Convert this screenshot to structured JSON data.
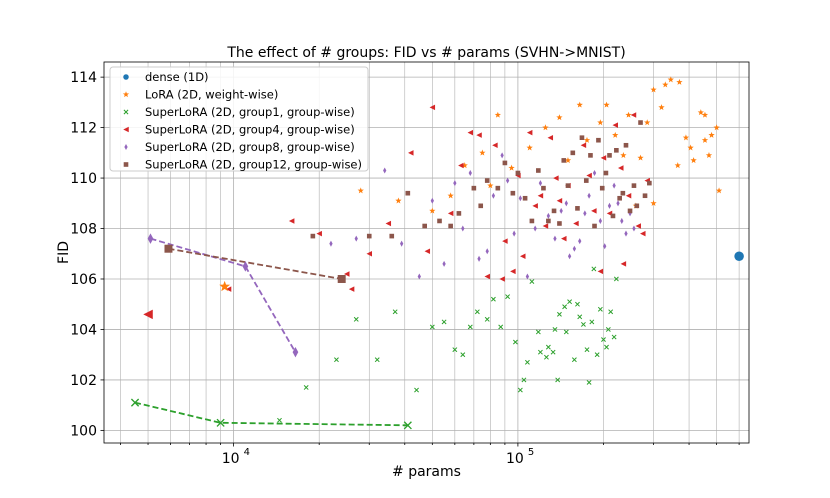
{
  "chart_data": {
    "type": "scatter",
    "title": "The effect of # groups: FID vs # params (SVHN->MNIST)",
    "xlabel": "# params",
    "ylabel": "FID",
    "x_scale": "log",
    "xlim": [
      3500,
      650000
    ],
    "ylim": [
      99.5,
      114.6
    ],
    "x_major_ticks": [
      {
        "value": 10000,
        "base": "10",
        "exp": "4"
      },
      {
        "value": 100000,
        "base": "10",
        "exp": "5"
      }
    ],
    "y_ticks": [
      100,
      102,
      104,
      106,
      108,
      110,
      112,
      114
    ],
    "grid": true,
    "legend_position": "upper-left",
    "series": [
      {
        "name": "dense (1D)",
        "color": "#1f77b4",
        "marker": "circle",
        "points": [
          [
            600000,
            106.9
          ]
        ],
        "highlight": [
          [
            600000,
            106.9
          ]
        ]
      },
      {
        "name": "LoRA (2D, weight-wise)",
        "color": "#ff7f0e",
        "marker": "star",
        "highlight": [
          [
            9300,
            105.7
          ]
        ],
        "points": [
          [
            28000,
            109.5
          ],
          [
            38000,
            109.1
          ],
          [
            50000,
            108.7
          ],
          [
            58000,
            109.3
          ],
          [
            65000,
            110.5
          ],
          [
            80000,
            109.7
          ],
          [
            75000,
            111.0
          ],
          [
            85000,
            112.5
          ],
          [
            95000,
            110.4
          ],
          [
            110000,
            111.2
          ],
          [
            125000,
            112.0
          ],
          [
            140000,
            112.4
          ],
          [
            150000,
            110.7
          ],
          [
            165000,
            112.9
          ],
          [
            175000,
            111.5
          ],
          [
            195000,
            112.2
          ],
          [
            205000,
            112.9
          ],
          [
            220000,
            111.7
          ],
          [
            235000,
            110.9
          ],
          [
            245000,
            112.5
          ],
          [
            260000,
            108.9
          ],
          [
            270000,
            110.8
          ],
          [
            285000,
            112.2
          ],
          [
            300000,
            113.5
          ],
          [
            320000,
            112.8
          ],
          [
            330000,
            113.7
          ],
          [
            345000,
            113.9
          ],
          [
            370000,
            113.8
          ],
          [
            365000,
            110.5
          ],
          [
            390000,
            111.6
          ],
          [
            405000,
            111.2
          ],
          [
            415000,
            110.7
          ],
          [
            440000,
            112.6
          ],
          [
            455000,
            112.5
          ],
          [
            470000,
            110.9
          ],
          [
            480000,
            111.7
          ],
          [
            500000,
            112.0
          ],
          [
            510000,
            109.5
          ],
          [
            455000,
            111.5
          ],
          [
            300000,
            109.0
          ]
        ]
      },
      {
        "name": "SuperLoRA (2D, group1, group-wise)",
        "color": "#2ca02c",
        "marker": "x",
        "line": [
          [
            4500,
            101.1
          ],
          [
            9000,
            100.3
          ],
          [
            41000,
            100.2
          ]
        ],
        "highlight": [
          [
            4500,
            101.1
          ],
          [
            9000,
            100.3
          ],
          [
            41000,
            100.2
          ]
        ],
        "points": [
          [
            14500,
            100.4
          ],
          [
            18000,
            101.7
          ],
          [
            23000,
            102.8
          ],
          [
            27000,
            104.4
          ],
          [
            32000,
            102.8
          ],
          [
            37000,
            104.7
          ],
          [
            44000,
            101.6
          ],
          [
            50000,
            104.1
          ],
          [
            55000,
            104.3
          ],
          [
            60000,
            103.2
          ],
          [
            64000,
            103.0
          ],
          [
            68000,
            104.1
          ],
          [
            72000,
            104.7
          ],
          [
            78000,
            104.4
          ],
          [
            82000,
            105.2
          ],
          [
            87000,
            104.1
          ],
          [
            92000,
            105.3
          ],
          [
            98000,
            103.5
          ],
          [
            102000,
            101.6
          ],
          [
            105000,
            102.0
          ],
          [
            108000,
            102.7
          ],
          [
            112000,
            105.9
          ],
          [
            118000,
            103.9
          ],
          [
            120000,
            103.1
          ],
          [
            126000,
            102.9
          ],
          [
            128000,
            103.3
          ],
          [
            133000,
            103.1
          ],
          [
            135000,
            104.0
          ],
          [
            138000,
            102.0
          ],
          [
            140000,
            104.6
          ],
          [
            146000,
            104.9
          ],
          [
            148000,
            103.9
          ],
          [
            152000,
            105.1
          ],
          [
            158000,
            102.8
          ],
          [
            162000,
            105.0
          ],
          [
            165000,
            104.5
          ],
          [
            170000,
            104.2
          ],
          [
            175000,
            103.2
          ],
          [
            178000,
            101.9
          ],
          [
            182000,
            104.3
          ],
          [
            185000,
            106.4
          ],
          [
            190000,
            103.0
          ],
          [
            195000,
            104.8
          ],
          [
            200000,
            103.6
          ],
          [
            205000,
            103.3
          ],
          [
            208000,
            104.0
          ],
          [
            212000,
            104.7
          ],
          [
            218000,
            103.7
          ],
          [
            222000,
            106.0
          ]
        ]
      },
      {
        "name": "SuperLoRA (2D, group4, group-wise)",
        "color": "#d62728",
        "marker": "triangle-left",
        "highlight": [
          [
            5000,
            104.6
          ]
        ],
        "points": [
          [
            9600,
            105.6
          ],
          [
            16000,
            108.3
          ],
          [
            20000,
            107.8
          ],
          [
            25000,
            106.2
          ],
          [
            26000,
            105.6
          ],
          [
            30000,
            107.0
          ],
          [
            35000,
            108.2
          ],
          [
            42000,
            111.0
          ],
          [
            48000,
            107.1
          ],
          [
            50000,
            112.8
          ],
          [
            58000,
            108.6
          ],
          [
            63000,
            110.5
          ],
          [
            68000,
            111.8
          ],
          [
            73000,
            111.7
          ],
          [
            78000,
            106.1
          ],
          [
            83000,
            111.3
          ],
          [
            88000,
            106.0
          ],
          [
            90000,
            107.5
          ],
          [
            96000,
            106.3
          ],
          [
            100000,
            110.1
          ],
          [
            104000,
            106.9
          ],
          [
            110000,
            111.8
          ],
          [
            115000,
            108.9
          ],
          [
            120000,
            109.3
          ],
          [
            125000,
            108.1
          ],
          [
            130000,
            111.6
          ],
          [
            136000,
            110.0
          ],
          [
            140000,
            109.1
          ],
          [
            145000,
            107.6
          ],
          [
            150000,
            109.7
          ],
          [
            160000,
            108.2
          ],
          [
            170000,
            111.3
          ],
          [
            178000,
            110.1
          ],
          [
            185000,
            108.7
          ],
          [
            195000,
            106.3
          ],
          [
            200000,
            110.8
          ],
          [
            210000,
            108.6
          ],
          [
            220000,
            112.1
          ],
          [
            230000,
            110.4
          ],
          [
            235000,
            106.6
          ],
          [
            245000,
            109.3
          ],
          [
            255000,
            112.5
          ],
          [
            265000,
            108.1
          ],
          [
            275000,
            107.8
          ],
          [
            285000,
            109.9
          ]
        ]
      },
      {
        "name": "SuperLoRA (2D, group8, group-wise)",
        "color": "#9467bd",
        "marker": "thin-diamond",
        "line": [
          [
            5100,
            107.6
          ],
          [
            11000,
            106.5
          ],
          [
            16500,
            103.1
          ]
        ],
        "highlight": [
          [
            5100,
            107.6
          ],
          [
            11000,
            106.5
          ],
          [
            16500,
            103.1
          ]
        ],
        "points": [
          [
            22000,
            107.4
          ],
          [
            27000,
            107.6
          ],
          [
            34000,
            110.3
          ],
          [
            39000,
            107.4
          ],
          [
            45000,
            106.1
          ],
          [
            50000,
            109.1
          ],
          [
            55000,
            106.6
          ],
          [
            60000,
            109.8
          ],
          [
            64000,
            108.0
          ],
          [
            68000,
            110.2
          ],
          [
            73000,
            106.8
          ],
          [
            78000,
            107.1
          ],
          [
            82000,
            109.3
          ],
          [
            88000,
            110.9
          ],
          [
            92000,
            109.9
          ],
          [
            97000,
            107.8
          ],
          [
            102000,
            109.2
          ],
          [
            108000,
            106.1
          ],
          [
            115000,
            108.0
          ],
          [
            120000,
            109.8
          ],
          [
            128000,
            108.5
          ],
          [
            135000,
            107.6
          ],
          [
            142000,
            108.7
          ],
          [
            148000,
            109.0
          ],
          [
            152000,
            106.9
          ],
          [
            158000,
            107.2
          ],
          [
            165000,
            107.5
          ],
          [
            172000,
            108.6
          ],
          [
            178000,
            109.3
          ],
          [
            186000,
            110.2
          ],
          [
            195000,
            108.3
          ],
          [
            202000,
            107.3
          ],
          [
            210000,
            108.9
          ],
          [
            218000,
            109.7
          ],
          [
            225000,
            109.0
          ],
          [
            232000,
            108.3
          ],
          [
            240000,
            107.8
          ],
          [
            248000,
            108.6
          ],
          [
            256000,
            108.0
          ]
        ]
      },
      {
        "name": "SuperLoRA (2D, group12, group-wise)",
        "color": "#8c564b",
        "marker": "square",
        "line": [
          [
            5900,
            107.2
          ],
          [
            24000,
            106.0
          ]
        ],
        "highlight": [
          [
            5900,
            107.2
          ],
          [
            24000,
            106.0
          ]
        ],
        "points": [
          [
            19000,
            107.7
          ],
          [
            30000,
            107.7
          ],
          [
            36000,
            107.7
          ],
          [
            41000,
            109.4
          ],
          [
            47000,
            108.1
          ],
          [
            53000,
            108.3
          ],
          [
            58000,
            108.1
          ],
          [
            62000,
            108.6
          ],
          [
            70000,
            109.6
          ],
          [
            74000,
            108.9
          ],
          [
            78000,
            109.9
          ],
          [
            85000,
            109.6
          ],
          [
            90000,
            110.6
          ],
          [
            96000,
            109.4
          ],
          [
            100000,
            110.2
          ],
          [
            106000,
            109.2
          ],
          [
            112000,
            108.3
          ],
          [
            118000,
            110.3
          ],
          [
            123000,
            109.6
          ],
          [
            128000,
            108.3
          ],
          [
            134000,
            108.7
          ],
          [
            140000,
            108.2
          ],
          [
            145000,
            110.7
          ],
          [
            150000,
            109.7
          ],
          [
            156000,
            111.0
          ],
          [
            162000,
            108.8
          ],
          [
            168000,
            111.6
          ],
          [
            174000,
            109.9
          ],
          [
            180000,
            110.9
          ],
          [
            186000,
            108.1
          ],
          [
            192000,
            111.5
          ],
          [
            198000,
            109.6
          ],
          [
            204000,
            110.2
          ],
          [
            210000,
            110.9
          ],
          [
            216000,
            108.5
          ],
          [
            222000,
            111.1
          ],
          [
            228000,
            109.2
          ],
          [
            234000,
            109.4
          ],
          [
            240000,
            111.3
          ],
          [
            248000,
            108.7
          ],
          [
            256000,
            109.7
          ],
          [
            262000,
            108.9
          ],
          [
            270000,
            112.2
          ],
          [
            280000,
            109.3
          ],
          [
            290000,
            109.8
          ]
        ]
      }
    ]
  }
}
